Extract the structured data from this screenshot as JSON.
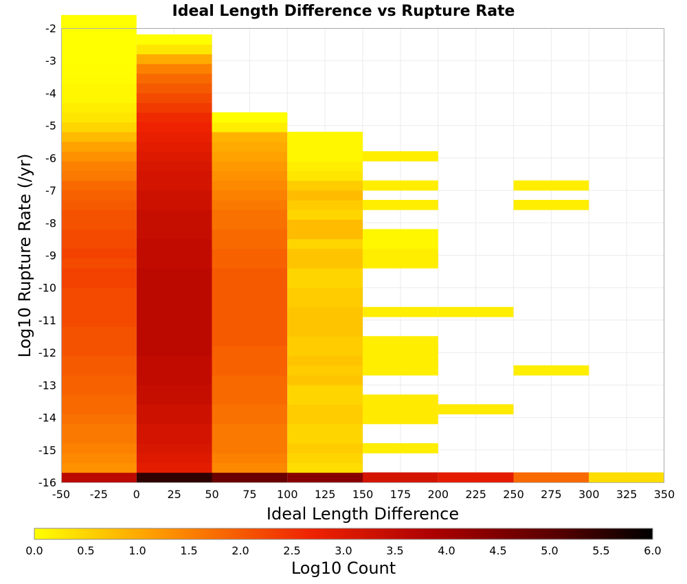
{
  "chart_data": {
    "type": "heatmap",
    "title": "Ideal Length Difference vs Rupture Rate",
    "xlabel": "Ideal Length Difference",
    "ylabel": "Log10 Rupture Rate (/yr)",
    "colorbar_label": "Log10 Count",
    "xlim": [
      -50,
      350
    ],
    "ylim": [
      -16,
      -2
    ],
    "x_ticks": [
      "-50",
      "-25",
      "0",
      "25",
      "50",
      "75",
      "100",
      "125",
      "150",
      "175",
      "200",
      "225",
      "250",
      "275",
      "300",
      "325",
      "350"
    ],
    "y_ticks": [
      "-2",
      "-3",
      "-4",
      "-5",
      "-6",
      "-7",
      "-8",
      "-9",
      "-10",
      "-11",
      "-12",
      "-13",
      "-14",
      "-15",
      "-16"
    ],
    "colorbar_ticks": [
      "0.0",
      "0.5",
      "1.0",
      "1.5",
      "2.0",
      "2.5",
      "3.0",
      "3.5",
      "4.0",
      "4.5",
      "5.0",
      "5.5",
      "6.0"
    ],
    "color_range": [
      0,
      6
    ],
    "colormap": [
      "#ffff00",
      "#ff9900",
      "#ee2200",
      "#aa0000",
      "#550000",
      "#000000"
    ],
    "bin_width_x": 50,
    "bin_height_y": 0.3,
    "columns": [
      {
        "x0": -50,
        "x1": 0,
        "y_start": -16,
        "values": [
          3.6,
          1.3,
          1.4,
          1.5,
          1.6,
          1.6,
          1.7,
          1.8,
          1.8,
          1.9,
          1.9,
          2.0,
          2.0,
          2.1,
          2.1,
          2.1,
          2.2,
          2.2,
          2.2,
          2.2,
          2.3,
          2.3,
          2.2,
          2.3,
          2.2,
          2.2,
          2.1,
          2.1,
          2.0,
          1.9,
          1.8,
          1.6,
          1.5,
          1.3,
          1.1,
          0.8,
          0.5,
          0.3,
          0.2,
          0.1,
          0.1,
          0.05,
          0.02,
          0.0,
          0.0,
          0.0,
          0.0,
          0.0
        ]
      },
      {
        "x0": 0,
        "x1": 50,
        "y_start": -16,
        "values": [
          5.5,
          2.9,
          3.0,
          3.1,
          3.2,
          3.2,
          3.3,
          3.3,
          3.4,
          3.4,
          3.5,
          3.5,
          3.5,
          3.6,
          3.6,
          3.6,
          3.6,
          3.6,
          3.6,
          3.6,
          3.6,
          3.6,
          3.5,
          3.5,
          3.5,
          3.4,
          3.4,
          3.4,
          3.3,
          3.3,
          3.2,
          3.2,
          3.1,
          3.0,
          2.9,
          2.8,
          2.7,
          2.6,
          2.4,
          2.2,
          2.0,
          1.8,
          1.5,
          1.0,
          0.3,
          0.0
        ]
      },
      {
        "x0": 50,
        "x1": 100,
        "y_start": -16,
        "values": [
          4.8,
          1.4,
          1.5,
          1.6,
          1.6,
          1.6,
          1.7,
          1.7,
          1.8,
          1.8,
          1.8,
          1.9,
          1.9,
          1.9,
          2.0,
          2.0,
          2.0,
          2.0,
          2.0,
          2.0,
          2.0,
          2.0,
          1.9,
          1.9,
          1.8,
          1.8,
          1.7,
          1.7,
          1.6,
          1.5,
          1.4,
          1.3,
          1.2,
          1.1,
          1.0,
          0.9,
          0.2,
          0.0
        ]
      },
      {
        "x0": 100,
        "x1": 150,
        "y_start": -16,
        "values": [
          4.4,
          0.4,
          0.5,
          0.6,
          0.5,
          0.5,
          0.6,
          0.6,
          0.5,
          0.5,
          0.7,
          0.6,
          0.7,
          0.6,
          0.6,
          0.7,
          0.7,
          0.7,
          0.6,
          0.6,
          0.5,
          0.5,
          0.7,
          0.7,
          0.5,
          0.8,
          0.8,
          0.5,
          0.6,
          0.8,
          0.6,
          0.3,
          0.2,
          0.1,
          0.1,
          0.1
        ]
      },
      {
        "x0": 150,
        "x1": 200,
        "y_start": -16,
        "values": [
          3.2,
          null,
          null,
          0.2,
          null,
          null,
          0.25,
          0.25,
          0.25,
          null,
          null,
          0.2,
          0.2,
          0.2,
          0.2,
          null,
          null,
          0.2,
          null,
          null,
          null,
          null,
          0.2,
          0.2,
          0.1,
          0.1,
          null,
          null,
          0.2,
          null,
          0.2,
          null,
          null,
          0.2
        ]
      },
      {
        "x0": 200,
        "x1": 250,
        "y_start": -16,
        "values": [
          2.9,
          null,
          null,
          null,
          null,
          null,
          null,
          0.25,
          null,
          null,
          null,
          null,
          null,
          null,
          null,
          null,
          null,
          0.2
        ]
      },
      {
        "x0": 250,
        "x1": 300,
        "y_start": -16,
        "values": [
          1.8,
          null,
          null,
          null,
          null,
          null,
          null,
          null,
          null,
          null,
          null,
          0.2,
          null,
          null,
          null,
          null,
          null,
          null,
          null,
          null,
          null,
          null,
          null,
          null,
          null,
          null,
          null,
          null,
          0.2,
          null,
          0.2
        ]
      },
      {
        "x0": 300,
        "x1": 350,
        "y_start": -16,
        "values": [
          0.4
        ]
      }
    ]
  }
}
